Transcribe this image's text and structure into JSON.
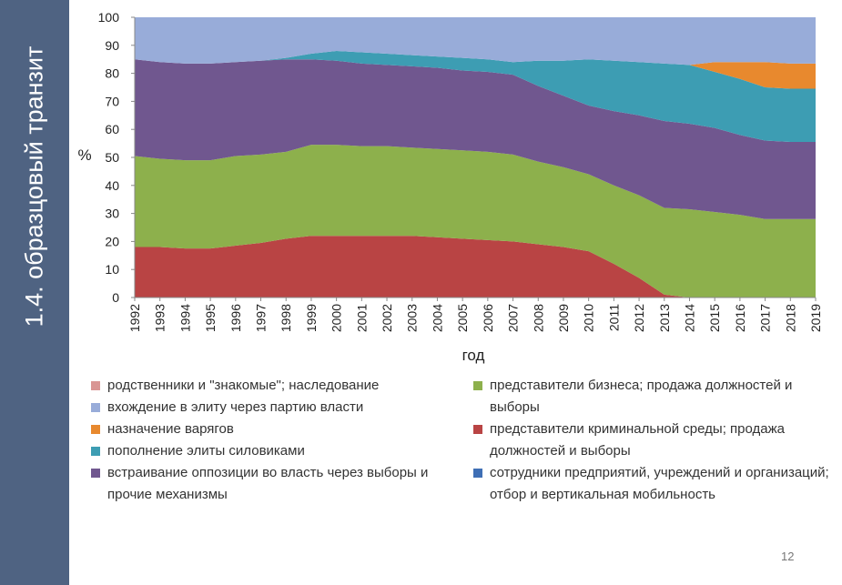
{
  "title": "1.4. образцовый транзит",
  "page_number": "12",
  "chart_data": {
    "type": "stacked_area",
    "y_label": "%",
    "x_label": "год",
    "categories": [
      "1992",
      "1993",
      "1994",
      "1995",
      "1996",
      "1997",
      "1998",
      "1999",
      "2000",
      "2001",
      "2002",
      "2003",
      "2004",
      "2005",
      "2006",
      "2007",
      "2008",
      "2009",
      "2010",
      "2011",
      "2012",
      "2013",
      "2014",
      "2015",
      "2016",
      "2017",
      "2018",
      "2019"
    ],
    "ylim": [
      0,
      100
    ],
    "yticks": [
      0,
      10,
      20,
      30,
      40,
      50,
      60,
      70,
      80,
      90,
      100
    ],
    "series": [
      {
        "name": "представители криминальной среды; продажа должностей и выборы",
        "color": "#b94444",
        "values": [
          18,
          18,
          17.5,
          17.5,
          18.5,
          19.5,
          21,
          22,
          22,
          22,
          22,
          22,
          21.5,
          21,
          20.5,
          20,
          19,
          18,
          16.5,
          12,
          7,
          1,
          0,
          0,
          0,
          0,
          0,
          0
        ]
      },
      {
        "name": "представители бизнеса; продажа должностей и выборы",
        "color": "#8db04c",
        "values": [
          32.5,
          31.5,
          31.5,
          31.5,
          32,
          31.5,
          31,
          32.5,
          32.5,
          32,
          32,
          31.5,
          31.5,
          31.5,
          31.5,
          31,
          29.5,
          28.5,
          27.5,
          28,
          29.5,
          31,
          31.5,
          30.5,
          29.5,
          28,
          28,
          28
        ]
      },
      {
        "name": "встраивание оппозиции во власть через выборы и прочие механизмы",
        "color": "#70578f",
        "values": [
          34.5,
          34.5,
          34.5,
          34.5,
          33.5,
          33.5,
          33,
          30.5,
          30,
          29.5,
          29,
          29,
          29,
          28.5,
          28.5,
          28.5,
          27,
          25.5,
          24.5,
          26.5,
          28.5,
          31,
          30.5,
          30,
          28.5,
          28,
          27.5,
          27.5
        ]
      },
      {
        "name": "пополнение элиты силовиками",
        "color": "#3d9db3",
        "values": [
          0,
          0,
          0,
          0,
          0,
          0,
          0.5,
          2,
          3.5,
          4,
          4,
          4,
          4,
          4.5,
          4.5,
          4.5,
          9,
          12.5,
          16.5,
          18,
          19,
          20.5,
          21,
          20,
          20,
          19,
          19,
          19
        ]
      },
      {
        "name": "назначение варягов",
        "color": "#e8892e",
        "values": [
          0,
          0,
          0,
          0,
          0,
          0,
          0,
          0,
          0,
          0,
          0,
          0,
          0,
          0,
          0,
          0,
          0,
          0,
          0,
          0,
          0,
          0,
          0,
          3.5,
          6,
          9,
          9,
          9
        ]
      },
      {
        "name": "вхождение в элиту через партию власти",
        "color": "#98acd9",
        "values": [
          15,
          16,
          16.5,
          16.5,
          16,
          15.5,
          14.5,
          13,
          12,
          12.5,
          13,
          13.5,
          14,
          14.5,
          15,
          16,
          15.5,
          15.5,
          15,
          15.5,
          16,
          16.5,
          17,
          16,
          16,
          16,
          16.5,
          16.5
        ]
      },
      {
        "name": "родственники и \"знакомые\"; наследование",
        "color": "#d99694",
        "values": [
          0,
          0,
          0,
          0,
          0,
          0,
          0,
          0,
          0,
          0,
          0,
          0,
          0,
          0,
          0,
          0,
          0,
          0,
          0,
          0,
          0,
          0,
          0,
          0,
          0,
          0,
          0,
          0
        ]
      },
      {
        "name": "сотрудники предприятий, учреждений и организаций; отбор и вертикальная мобильность",
        "color": "#3f6fb5",
        "values": [
          0,
          0,
          0,
          0,
          0,
          0,
          0,
          0,
          0,
          0,
          0,
          0,
          0,
          0,
          0,
          0,
          0,
          0,
          0,
          0,
          0,
          0,
          0,
          0,
          0,
          0,
          0,
          0
        ]
      }
    ]
  }
}
